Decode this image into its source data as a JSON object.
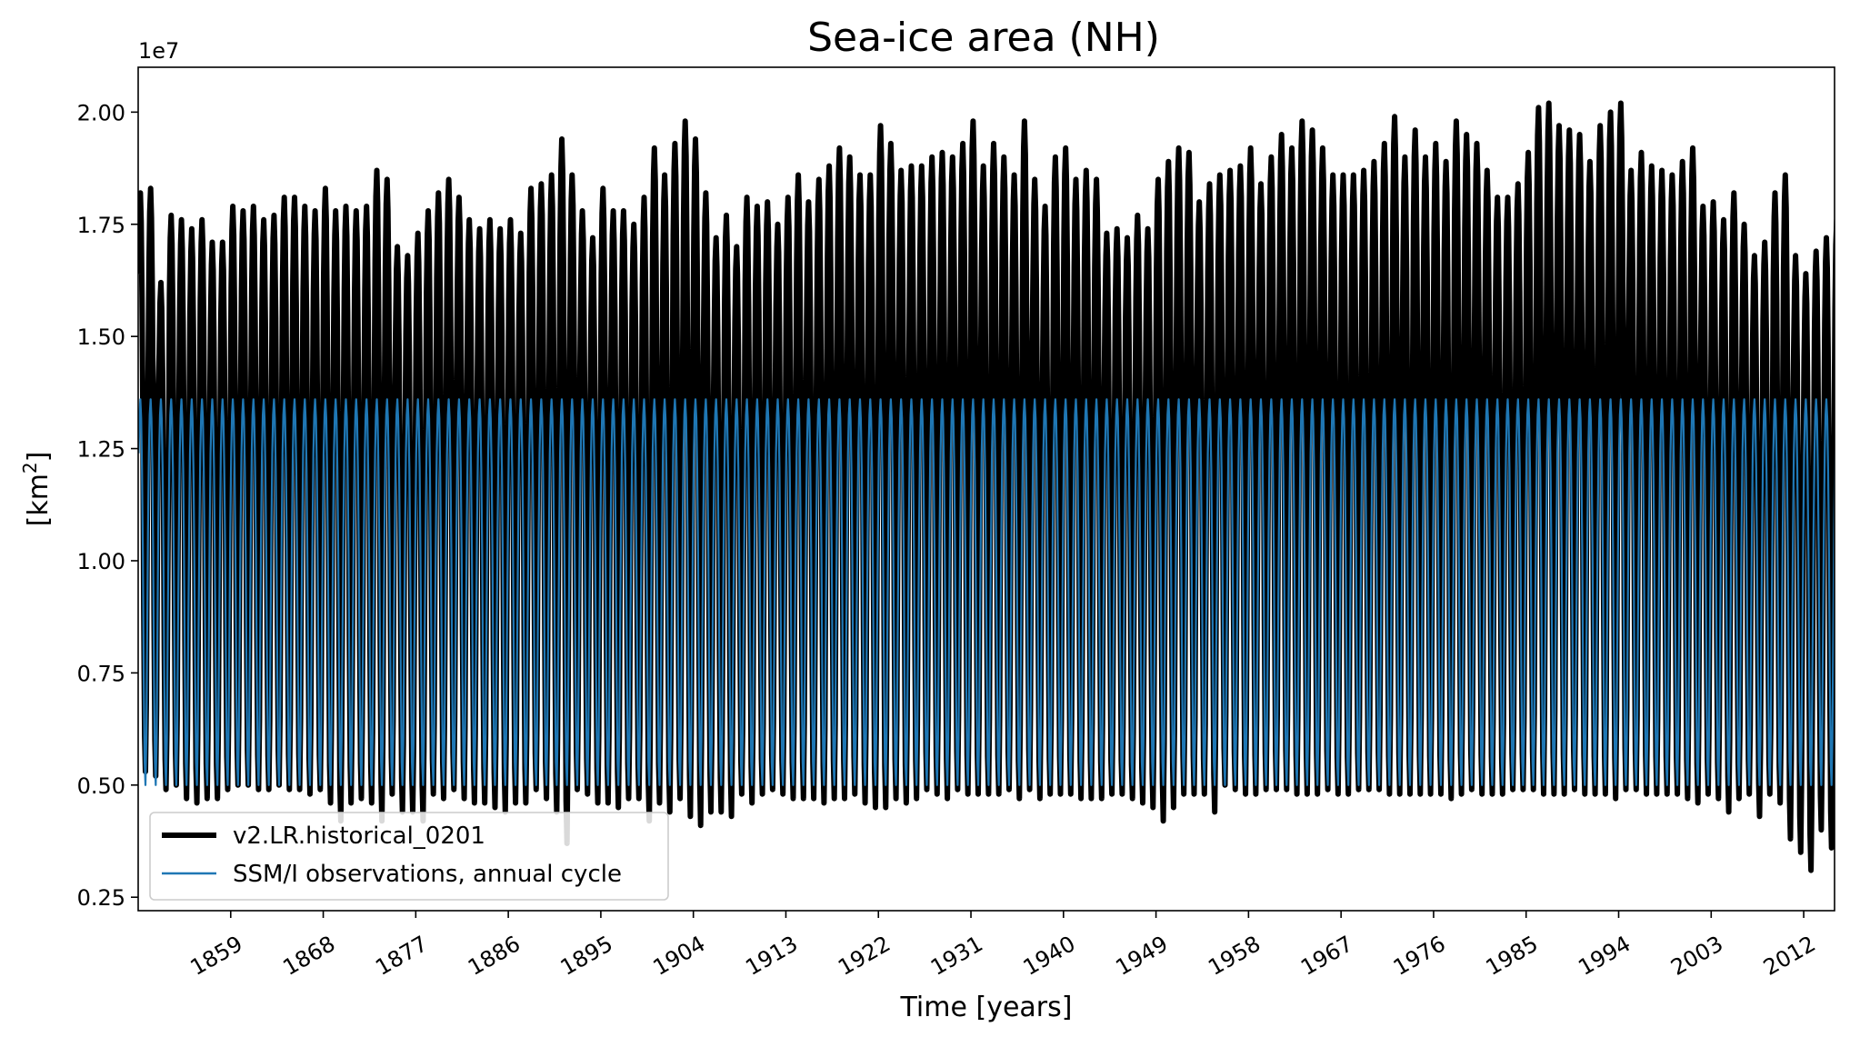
{
  "chart_data": {
    "type": "line",
    "title": "Sea-ice area (NH)",
    "xlabel": "Time [years]",
    "ylabel_main": "[km",
    "ylabel_sup": "2",
    "ylabel_close": "]",
    "offset_text": "1e7",
    "xlim": [
      1850,
      2015
    ],
    "ylim": [
      0.22,
      2.1
    ],
    "x_ticks": [
      1859,
      1868,
      1877,
      1886,
      1895,
      1904,
      1913,
      1922,
      1931,
      1940,
      1949,
      1958,
      1967,
      1976,
      1985,
      1994,
      2003,
      2012
    ],
    "x_tick_labels": [
      "1859",
      "1868",
      "1877",
      "1886",
      "1895",
      "1904",
      "1913",
      "1922",
      "1931",
      "1940",
      "1949",
      "1958",
      "1967",
      "1976",
      "1985",
      "1994",
      "2003",
      "2012"
    ],
    "y_ticks": [
      0.25,
      0.5,
      0.75,
      1.0,
      1.25,
      1.5,
      1.75,
      2.0
    ],
    "y_tick_labels": [
      "0.25",
      "0.50",
      "0.75",
      "1.00",
      "1.25",
      "1.50",
      "1.75",
      "2.00"
    ],
    "grid": false,
    "legend_position": "lower-left",
    "series": [
      {
        "name": "v2.LR.historical_0201",
        "color": "#000000",
        "style": "thick",
        "start_year": 1850,
        "annual_max": [
          1.82,
          1.83,
          1.62,
          1.77,
          1.76,
          1.74,
          1.76,
          1.71,
          1.71,
          1.79,
          1.78,
          1.79,
          1.76,
          1.77,
          1.81,
          1.81,
          1.79,
          1.78,
          1.83,
          1.78,
          1.79,
          1.78,
          1.79,
          1.87,
          1.85,
          1.7,
          1.68,
          1.73,
          1.78,
          1.82,
          1.85,
          1.81,
          1.76,
          1.74,
          1.76,
          1.74,
          1.76,
          1.73,
          1.83,
          1.84,
          1.86,
          1.94,
          1.86,
          1.78,
          1.72,
          1.83,
          1.78,
          1.78,
          1.75,
          1.81,
          1.92,
          1.86,
          1.93,
          1.98,
          1.94,
          1.82,
          1.72,
          1.77,
          1.7,
          1.81,
          1.79,
          1.8,
          1.75,
          1.81,
          1.86,
          1.8,
          1.85,
          1.88,
          1.92,
          1.9,
          1.86,
          1.86,
          1.97,
          1.93,
          1.87,
          1.88,
          1.88,
          1.9,
          1.91,
          1.9,
          1.93,
          1.98,
          1.88,
          1.93,
          1.9,
          1.86,
          1.98,
          1.85,
          1.79,
          1.9,
          1.92,
          1.85,
          1.87,
          1.85,
          1.73,
          1.74,
          1.72,
          1.77,
          1.74,
          1.85,
          1.89,
          1.92,
          1.91,
          1.8,
          1.84,
          1.86,
          1.87,
          1.88,
          1.92,
          1.84,
          1.9,
          1.95,
          1.92,
          1.98,
          1.96,
          1.92,
          1.86,
          1.86,
          1.86,
          1.87,
          1.89,
          1.93,
          1.99,
          1.9,
          1.96,
          1.9,
          1.93,
          1.89,
          1.98,
          1.95,
          1.93,
          1.87,
          1.81,
          1.81,
          1.84,
          1.91,
          2.01,
          2.02,
          1.97,
          1.96,
          1.95,
          1.89,
          1.97,
          2.0,
          2.02,
          1.87,
          1.91,
          1.88,
          1.87,
          1.86,
          1.89,
          1.92,
          1.79,
          1.8,
          1.76,
          1.82,
          1.75,
          1.68,
          1.71,
          1.82,
          1.86,
          1.68,
          1.64,
          1.69,
          1.72,
          1.76,
          1.68,
          1.74,
          1.71
        ],
        "annual_min": [
          0.53,
          0.52,
          0.49,
          0.5,
          0.47,
          0.46,
          0.47,
          0.47,
          0.49,
          0.5,
          0.5,
          0.49,
          0.49,
          0.5,
          0.49,
          0.49,
          0.48,
          0.49,
          0.46,
          0.42,
          0.46,
          0.47,
          0.46,
          0.42,
          0.48,
          0.44,
          0.44,
          0.42,
          0.48,
          0.47,
          0.49,
          0.47,
          0.46,
          0.46,
          0.45,
          0.44,
          0.46,
          0.46,
          0.49,
          0.47,
          0.44,
          0.37,
          0.49,
          0.48,
          0.46,
          0.46,
          0.45,
          0.47,
          0.47,
          0.42,
          0.46,
          0.44,
          0.47,
          0.43,
          0.41,
          0.44,
          0.44,
          0.43,
          0.48,
          0.46,
          0.48,
          0.49,
          0.48,
          0.47,
          0.47,
          0.47,
          0.46,
          0.47,
          0.47,
          0.48,
          0.46,
          0.45,
          0.45,
          0.47,
          0.46,
          0.47,
          0.49,
          0.48,
          0.47,
          0.49,
          0.48,
          0.48,
          0.48,
          0.48,
          0.49,
          0.47,
          0.49,
          0.47,
          0.48,
          0.48,
          0.48,
          0.47,
          0.47,
          0.47,
          0.48,
          0.48,
          0.47,
          0.46,
          0.45,
          0.42,
          0.45,
          0.48,
          0.48,
          0.48,
          0.44,
          0.5,
          0.49,
          0.48,
          0.48,
          0.49,
          0.49,
          0.49,
          0.48,
          0.48,
          0.48,
          0.49,
          0.48,
          0.48,
          0.49,
          0.49,
          0.49,
          0.48,
          0.48,
          0.48,
          0.48,
          0.48,
          0.48,
          0.47,
          0.48,
          0.49,
          0.48,
          0.48,
          0.48,
          0.49,
          0.49,
          0.49,
          0.48,
          0.48,
          0.48,
          0.49,
          0.48,
          0.48,
          0.48,
          0.47,
          0.49,
          0.49,
          0.48,
          0.48,
          0.48,
          0.48,
          0.47,
          0.46,
          0.48,
          0.47,
          0.44,
          0.47,
          0.48,
          0.43,
          0.48,
          0.46,
          0.38,
          0.35,
          0.31,
          0.4,
          0.36,
          0.37,
          0.35,
          0.33,
          0.33
        ]
      },
      {
        "name": "SSM/I observations, annual cycle",
        "color": "#1f77b4",
        "style": "thin",
        "annual_max": 1.36,
        "annual_min": 0.5
      }
    ]
  }
}
